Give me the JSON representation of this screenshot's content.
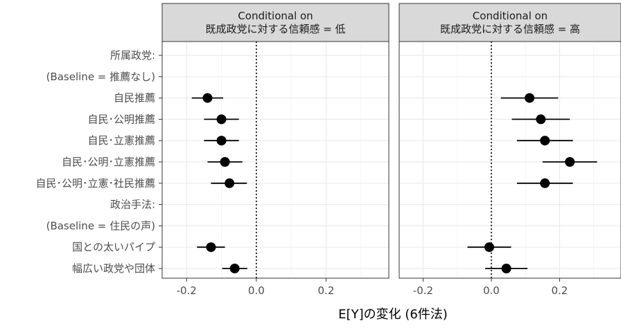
{
  "chart_data": {
    "type": "scatter",
    "subtype": "coefficient-plot with horizontal confidence intervals, two facets",
    "xlabel": "E[Y]の変化 (6件法)",
    "y_categories": [
      "所属政党:",
      "(Baseline = 推薦なし)",
      "自民推薦",
      "自民･公明推薦",
      "自民･立憲推薦",
      "自民･公明･立憲推薦",
      "自民･公明･立憲･社民推薦",
      "政治手法:",
      "(Baseline = 住民の声)",
      "国との太いパイプ",
      "幅広い政党や団体"
    ],
    "xticks": [
      -0.2,
      0.0,
      0.2
    ],
    "xlim": [
      -0.27,
      0.38
    ],
    "reference_line": 0.0,
    "grid": true,
    "panels": [
      {
        "strip": [
          "Conditional on",
          "既成政党に対する信頼感 = 低"
        ],
        "points": [
          {
            "category": "自民推薦",
            "estimate": -0.14,
            "lower": -0.185,
            "upper": -0.095
          },
          {
            "category": "自民･公明推薦",
            "estimate": -0.1,
            "lower": -0.15,
            "upper": -0.05
          },
          {
            "category": "自民･立憲推薦",
            "estimate": -0.1,
            "lower": -0.15,
            "upper": -0.05
          },
          {
            "category": "自民･公明･立憲推薦",
            "estimate": -0.09,
            "lower": -0.14,
            "upper": -0.04
          },
          {
            "category": "自民･公明･立憲･社民推薦",
            "estimate": -0.077,
            "lower": -0.13,
            "upper": -0.027
          },
          {
            "category": "国との太いパイプ",
            "estimate": -0.13,
            "lower": -0.17,
            "upper": -0.09
          },
          {
            "category": "幅広い政党や団体",
            "estimate": -0.062,
            "lower": -0.098,
            "upper": -0.026
          }
        ]
      },
      {
        "strip": [
          "Conditional on",
          "既成政党に対する信頼感 = 高"
        ],
        "points": [
          {
            "category": "自民推薦",
            "estimate": 0.112,
            "lower": 0.028,
            "upper": 0.196
          },
          {
            "category": "自民･公明推薦",
            "estimate": 0.145,
            "lower": 0.06,
            "upper": 0.23
          },
          {
            "category": "自民･立憲推薦",
            "estimate": 0.157,
            "lower": 0.075,
            "upper": 0.239
          },
          {
            "category": "自民･公明･立憲推薦",
            "estimate": 0.23,
            "lower": 0.15,
            "upper": 0.31
          },
          {
            "category": "自民･公明･立憲･社民推薦",
            "estimate": 0.157,
            "lower": 0.075,
            "upper": 0.239
          },
          {
            "category": "国との太いパイプ",
            "estimate": -0.006,
            "lower": -0.07,
            "upper": 0.058
          },
          {
            "category": "幅広い政党や団体",
            "estimate": 0.044,
            "lower": -0.018,
            "upper": 0.106
          }
        ]
      }
    ]
  },
  "colors": {
    "strip_fill": "#d9d9d9",
    "panel_border": "#333333",
    "grid_major": "#ebebeb",
    "grid_minor": "#f5f5f5",
    "point": "#000000"
  }
}
